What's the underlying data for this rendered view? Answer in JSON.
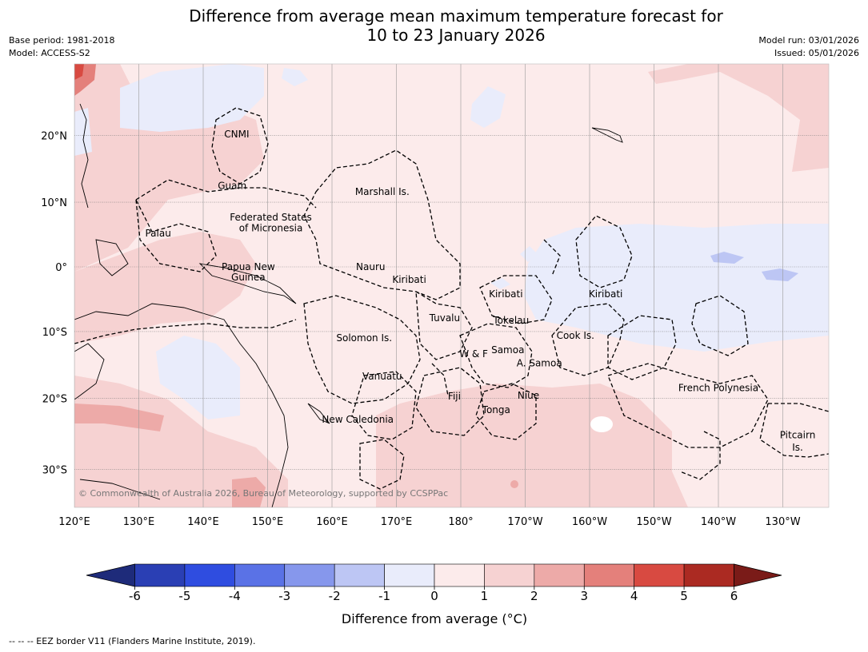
{
  "title_line1": "Difference from average mean maximum temperature forecast for",
  "title_line2": "10 to 23 January 2026",
  "meta": {
    "base_period": "Base period: 1981-2018",
    "model": "Model: ACCESS-S2",
    "model_run": "Model run: 03/01/2026",
    "issued": "Issued: 05/01/2026"
  },
  "lat_ticks": [
    {
      "lat": 20,
      "label": "20°N"
    },
    {
      "lat": 10,
      "label": "10°N"
    },
    {
      "lat": 0,
      "label": "0°"
    },
    {
      "lat": -10,
      "label": "10°S"
    },
    {
      "lat": -20,
      "label": "20°S"
    },
    {
      "lat": -30,
      "label": "30°S"
    }
  ],
  "lon_ticks": [
    {
      "lon": 120,
      "label": "120°E"
    },
    {
      "lon": 130,
      "label": "130°E"
    },
    {
      "lon": 140,
      "label": "140°E"
    },
    {
      "lon": 150,
      "label": "150°E"
    },
    {
      "lon": 160,
      "label": "160°E"
    },
    {
      "lon": 170,
      "label": "170°E"
    },
    {
      "lon": 180,
      "label": "180°"
    },
    {
      "lon": 190,
      "label": "170°W"
    },
    {
      "lon": 200,
      "label": "160°W"
    },
    {
      "lon": 210,
      "label": "150°W"
    },
    {
      "lon": 220,
      "label": "140°W"
    },
    {
      "lon": 230,
      "label": "130°W"
    }
  ],
  "places": [
    {
      "name": "CNMI",
      "lon": 145.2,
      "lat": 20.2
    },
    {
      "name": "Guam",
      "lon": 144.5,
      "lat": 12.5
    },
    {
      "name": "Marshall Is.",
      "lon": 167.8,
      "lat": 11.6
    },
    {
      "name": "Federated States",
      "lon": 150.5,
      "lat": 7.7
    },
    {
      "name": "of Micronesia",
      "lon": 150.5,
      "lat": 6.0
    },
    {
      "name": "Palau",
      "lon": 133.0,
      "lat": 5.2
    },
    {
      "name": "Papua New",
      "lon": 147.0,
      "lat": 0.0
    },
    {
      "name": "Guinea",
      "lon": 147.0,
      "lat": -1.6
    },
    {
      "name": "Nauru",
      "lon": 166.0,
      "lat": 0.0
    },
    {
      "name": "Kiribati",
      "lon": 172.0,
      "lat": -2.0
    },
    {
      "name": "Kiribati",
      "lon": 187.0,
      "lat": -4.2
    },
    {
      "name": "Kiribati",
      "lon": 202.5,
      "lat": -4.2
    },
    {
      "name": "Tuvalu",
      "lon": 177.5,
      "lat": -7.9
    },
    {
      "name": "Tokelau",
      "lon": 187.8,
      "lat": -8.3
    },
    {
      "name": "Solomon Is.",
      "lon": 165.0,
      "lat": -11.0
    },
    {
      "name": "Cook Is.",
      "lon": 197.8,
      "lat": -10.6
    },
    {
      "name": "Samoa",
      "lon": 187.3,
      "lat": -12.8
    },
    {
      "name": "W & F",
      "lon": 182.0,
      "lat": -13.4
    },
    {
      "name": "A. Samoa",
      "lon": 192.2,
      "lat": -14.8
    },
    {
      "name": "Vanuatu",
      "lon": 167.8,
      "lat": -16.8
    },
    {
      "name": "French Polynesia",
      "lon": 220.0,
      "lat": -18.5
    },
    {
      "name": "Fiji",
      "lon": 179.0,
      "lat": -19.7
    },
    {
      "name": "Niue",
      "lon": 190.5,
      "lat": -19.6
    },
    {
      "name": "Tonga",
      "lon": 185.5,
      "lat": -21.7
    },
    {
      "name": "New Caledonia",
      "lon": 164.0,
      "lat": -23.1
    },
    {
      "name": "Pitcairn",
      "lon": 232.3,
      "lat": -25.3
    },
    {
      "name": "Is.",
      "lon": 232.3,
      "lat": -27.0
    }
  ],
  "copyright": "© Commonwealth of Australia 2026, Bureau of Meteorology, supported by CCSPPac",
  "colorbar": {
    "ticks": [
      "-6",
      "-5",
      "-4",
      "-3",
      "-2",
      "-1",
      "0",
      "1",
      "2",
      "3",
      "4",
      "5",
      "6"
    ],
    "colors": [
      "#1e2b7a",
      "#2a3fb4",
      "#2f4de0",
      "#5a72e6",
      "#8697ec",
      "#bdc6f4",
      "#e9ecfb",
      "#fcebeb",
      "#f6d2d2",
      "#edaaa8",
      "#e4807b",
      "#d84a41",
      "#ab2a22",
      "#7a1b18"
    ],
    "label": "Difference from average (°C)"
  },
  "footer": "--  --  -- EEZ border V11 (Flanders Marine Institute, 2019)."
}
